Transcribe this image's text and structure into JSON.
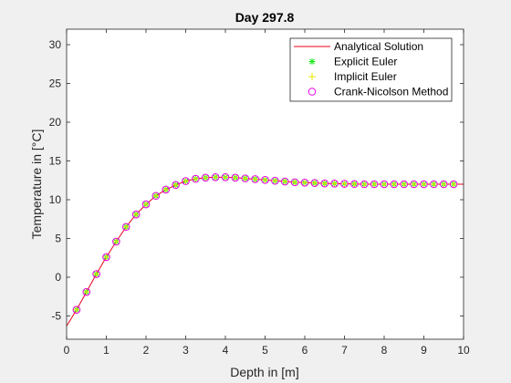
{
  "chart_data": {
    "type": "line",
    "title": "Day 297.8",
    "xlabel": "Depth in [m]",
    "ylabel": "Temperature in [°C]",
    "xlim": [
      0,
      10
    ],
    "ylim": [
      -8,
      32
    ],
    "xticks": [
      0,
      1,
      2,
      3,
      4,
      5,
      6,
      7,
      8,
      9,
      10
    ],
    "yticks": [
      -5,
      0,
      5,
      10,
      15,
      20,
      25,
      30
    ],
    "grid": false,
    "legend_position": "top-right",
    "colors": {
      "analytical": "#e8001a",
      "explicit": "#22e822",
      "implicit": "#e8e800",
      "crank": "#e800e8"
    },
    "analytical_x": [
      0,
      0.25,
      0.5,
      0.75,
      1.0,
      1.25,
      1.5,
      1.75,
      2.0,
      2.25,
      2.5,
      2.75,
      3.0,
      3.25,
      3.5,
      3.75,
      4.0,
      4.25,
      4.5,
      4.75,
      5.0,
      5.25,
      5.5,
      5.75,
      6.0,
      6.5,
      7.0,
      7.5,
      8.0,
      8.5,
      9.0,
      9.5,
      10.0
    ],
    "analytical_y": [
      -6.3,
      -4.2,
      -1.9,
      0.4,
      2.6,
      4.6,
      6.5,
      8.1,
      9.4,
      10.5,
      11.3,
      11.9,
      12.4,
      12.7,
      12.85,
      12.9,
      12.9,
      12.85,
      12.75,
      12.65,
      12.55,
      12.45,
      12.35,
      12.25,
      12.2,
      12.1,
      12.05,
      12.0,
      12.0,
      12.0,
      12.0,
      12.0,
      12.0
    ],
    "markers_x": [
      0.25,
      0.5,
      0.75,
      1.0,
      1.25,
      1.5,
      1.75,
      2.0,
      2.25,
      2.5,
      2.75,
      3.0,
      3.25,
      3.5,
      3.75,
      4.0,
      4.25,
      4.5,
      4.75,
      5.0,
      5.25,
      5.5,
      5.75,
      6.0,
      6.25,
      6.5,
      6.75,
      7.0,
      7.25,
      7.5,
      7.75,
      8.0,
      8.25,
      8.5,
      8.75,
      9.0,
      9.25,
      9.5,
      9.75
    ],
    "markers_y": [
      -4.2,
      -1.9,
      0.4,
      2.6,
      4.6,
      6.5,
      8.1,
      9.4,
      10.5,
      11.3,
      11.9,
      12.4,
      12.7,
      12.85,
      12.9,
      12.9,
      12.85,
      12.75,
      12.65,
      12.55,
      12.45,
      12.35,
      12.25,
      12.2,
      12.15,
      12.1,
      12.08,
      12.05,
      12.03,
      12.0,
      12.0,
      12.0,
      12.0,
      12.0,
      12.0,
      12.0,
      12.0,
      12.0,
      12.0
    ],
    "series": [
      {
        "name": "Analytical Solution",
        "style": "line"
      },
      {
        "name": "Explicit Euler",
        "style": "asterisk"
      },
      {
        "name": "Implicit Euler",
        "style": "plus"
      },
      {
        "name": "Crank-Nicolson Method",
        "style": "circle"
      }
    ]
  }
}
